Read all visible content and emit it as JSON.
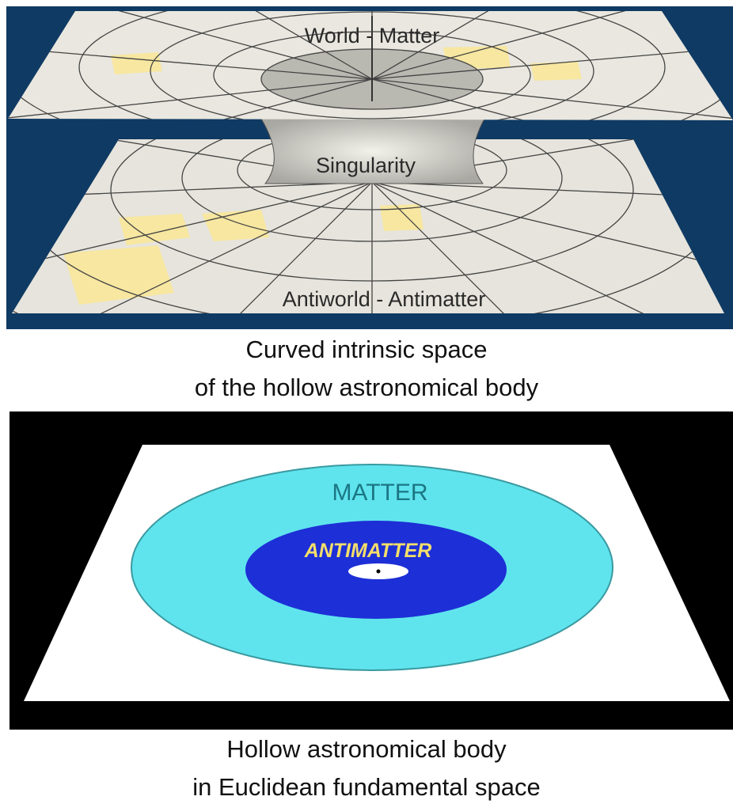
{
  "top_panel": {
    "labels": [
      "World - Matter",
      "Singularity",
      "Antiworld - Antimatter"
    ],
    "caption": [
      "Curved intrinsic space",
      "of the hollow astronomical body"
    ]
  },
  "bottom_panel": {
    "labels": [
      "MATTER",
      "ANTIMATTER"
    ],
    "caption": [
      "Hollow astronomical body",
      "in Euclidean fundamental space"
    ]
  }
}
